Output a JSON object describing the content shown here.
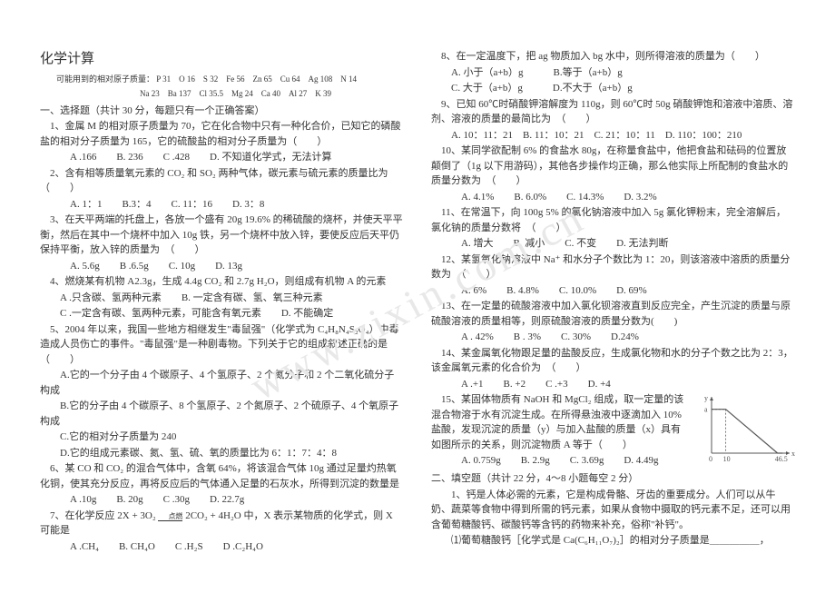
{
  "title": "化学计算",
  "rel_mass_label": "可能用到的相对原子质量：",
  "rel_mass_line1": "P 31　O 16　S 32　Fe 56　Zn 65　Cu 64　Ag 108　N 14",
  "rel_mass_line2": "Na 23　Ba 137　Cl 35.5　Mg 24　Ca 40　Al 27　K 39",
  "sec1": "一、选择题（共计 30 分，每题只有一个正确答案）",
  "q1a": "1、金属 M 的相对原子质量为 70，它在化合物中只有一种化合价，已知它的磷酸盐的相对分子质量为 165，它的硫酸盐的相对分子质量为（　　）",
  "q1o": "A .166　　B. 236　　C .428　　D. 不知道化学式，无法计算",
  "q2a": "2、含有相等质量氧元素的 CO₂ 和 SO₂ 两种气体，碳元素与硫元素的质量比为　（　　）",
  "q2o": "A. 1：1　　B.3：4　　C. 11：16　　D. 3：8",
  "q3a": "3、在天平两端的托盘上，各放一个盛有 20g 19.6% 的稀硫酸的烧杯，并使天平平衡，然后在其中一个烧杯中加入 10g 铁，另一个烧杯中放入锌，要使反应后天平仍保持平衡，放入锌的质量为　（　　）",
  "q3o": "A. 5.6g　　B .6.5g　　C. 10g　　D. 13g",
  "q4a": "4、燃烧某有机物 A2.3g，生成 4.4g CO₂ 和 2.7g H₂O，则组成有机物 A 的元素",
  "q4b": "A .只含碳、氢两种元素　　B. 一定含有碳、氢、氧三种元素",
  "q4c": "C .一定含有碳、氢两种元素，可能含有氧元素　　D. 不能确定",
  "q5a": "5、2004 年以来，我国一些地方相继发生\"毒鼠强\"（化学式为 C₄H₈N₄S₂O₄）中毒造成人员伤亡的事件。\"毒鼠强\"是一种剧毒物。下列关于它的组成叙述正确的是（　　）",
  "q5b": "A.它的一个分子由 4 个碳原子、4 个氢原子、2 个氮分子和 2 个二氧化硫分子构成",
  "q5c": "B.它的分子由 4 个碳原子、8 个氢原子、2 个氮原子、2 个硫原子、4 个氧原子构成",
  "q5d": "C.它的相对分子质量为 240",
  "q5e": "D.它的组成元素碳、氮、氢、硫、氧的质量比为 6：1：7：4：8",
  "q6a": "6、某 CO 和 CO₂ 的混合气体中，含氧 64%，将该混合气体 10g 通过足量灼热氧化铜，使其充分反应，再将反应后的气体通入足量的石灰水，所得到沉淀的数量是",
  "q6o": "A .10g　　B. 20g　　C .30g　　D. 22.7g",
  "q7a": "7、在化学反应 2X + 3O₂ ",
  "q7b": " 2CO₂ + 4H₂O 中，X 表示某物质的化学式，则 X 可能是",
  "q7o": "A .CH₄　　B. CH₄O　　C .H₂S　　D .C₂H₄O",
  "q8a": "8、在一定温度下，把 ag 物质加入 bg 水中，则所得溶液的质量为（　　）",
  "q8b": "A. 小于（a+b）g　　　B.等于（a+b）g",
  "q8c": "C. 大于（a+b）g　　　D.不大于（a+b）g",
  "q9a": "9、已知 60℃时硝酸钾溶解度为 110g，则 60℃时 50g 硝酸钾饱和溶液中溶质、溶剂、溶液的质量的最简比为　（　　）",
  "q9o": "A. 10：11：21　B. 11：10：21　C. 21：10：11　D. 110：100：210",
  "q10a": "10、某同学欲配制 6% 的食盐水 80g，在称量食盐中，他把食盐和砝码的位置放颠倒了（1g 以下用游码），其他各步操作均正确，那么他实际上所配制的食盐水的质量分数为　（　　）",
  "q10o": "A. 4.1%　　B. 6.0%　　C. 14.3%　　D. 3.2%",
  "q11a": "11、在常温下，向 100g 5% 的氯化钠溶液中加入 5g 氯化钾粉末，完全溶解后，氯化钠的质量分数将　（　　）",
  "q11o": "A. 增大　　B. 减小　　C. 不变　　D. 无法判断",
  "q12a": "12、某氢氧化钠溶液中 Na⁺ 和水分子个数比为 1：20，则该溶液中溶质的质量分数为　（　　）",
  "q12o": "A. 6%　　B. 4.8%　　C. 10.0%　　D. 69%",
  "q13a": "13、在一定量的硫酸溶液中加入氯化钡溶液直到反应完全，产生沉淀的质量与原硫酸溶液的质量相等，则原硫酸溶液的质量分数为(　　)",
  "q13o": "A . 42%　　B . 3%　　C. 30%　　D.24%",
  "q14a": "14、某金属氧化物跟足量的盐酸反应，生成氯化物和水的分子个数之比为 2：3，该金属氧元素的化合价为　（　　）",
  "q14o": "A .+1　　B. +2　　C .+3　　D. +4",
  "q15a": "15、某固体物质有 NaOH 和 MgCl₂ 组成，取一定量的该混合物溶于水有沉淀生成。在所得悬浊液中逐滴加入 10% 盐酸，发现沉淀的质量（y）与加入盐酸的质量（x）具有如图所示的关系，则沉淀物质 A 等于（　　）",
  "q15o": "A. 0.759g　　B. 2.9g　　C. 3.69g　　D. 4.49g",
  "sec2": "二、填空题（共计 22 分，4～8 小题每空 2 分）",
  "f1a": "1、钙是人体必需的元素，它是构成骨骼、牙齿的重要成分。人们可以从牛奶、蔬菜等食物中得到所需的钙元素，如果从食物中摄取的钙元素不足，还可以用含葡萄糖酸钙、碳酸钙等含钙的药物来补充，俗称\"补钙\"。",
  "f1b": "⑴葡萄糖酸钙［化学式是 Ca(C₆H₁₁O₇)₂］的相对分子质量是＿＿＿＿＿，",
  "watermark": "www.zixin.com.cn",
  "chart": {
    "ylabel": "a",
    "ylim": [
      0,
      12
    ],
    "xlim": [
      0,
      55
    ],
    "pts": [
      [
        0,
        10
      ],
      [
        7,
        10
      ],
      [
        10,
        10
      ],
      [
        10,
        10
      ],
      [
        46.5,
        0
      ],
      [
        50,
        0
      ]
    ],
    "dash_x": 10,
    "xtick": [
      "0",
      "10",
      "46.5"
    ],
    "xtick_pos": [
      0,
      10,
      46.5
    ],
    "axis_color": "#555555",
    "line_color": "#555555",
    "line_width": 1.2,
    "bg": "#ffffff",
    "font_size": 8
  }
}
